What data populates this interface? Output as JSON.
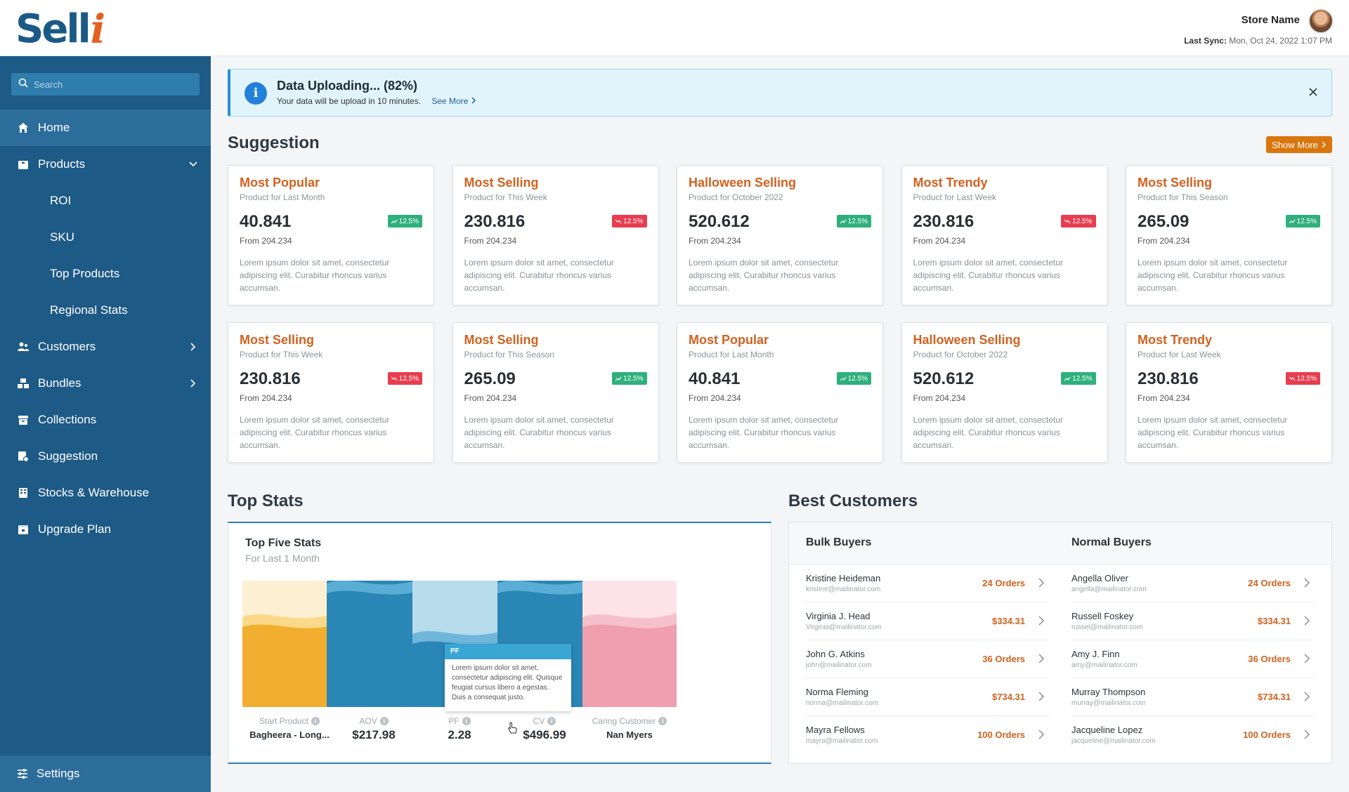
{
  "header": {
    "logo_main": "Sell",
    "logo_accent": "i",
    "store_name": "Store Name",
    "last_sync_label": "Last Sync:",
    "last_sync_value": "Mon, Oct 24, 2022 1:07 PM"
  },
  "sidebar": {
    "search_placeholder": "Search",
    "items": [
      {
        "label": "Home"
      },
      {
        "label": "Products"
      },
      {
        "label": "ROI"
      },
      {
        "label": "SKU"
      },
      {
        "label": "Top Products"
      },
      {
        "label": "Regional Stats"
      },
      {
        "label": "Customers"
      },
      {
        "label": "Bundles"
      },
      {
        "label": "Collections"
      },
      {
        "label": "Suggestion"
      },
      {
        "label": "Stocks & Warehouse"
      },
      {
        "label": "Upgrade Plan"
      }
    ],
    "settings_label": "Settings"
  },
  "banner": {
    "title": "Data Uploading... (82%)",
    "progress_percent": 82,
    "subtitle": "Your data will be upload in 10 minutes.",
    "link": "See More"
  },
  "suggestion": {
    "title": "Suggestion",
    "show_more": "Show More",
    "cards": [
      {
        "title": "Most Popular",
        "subtitle": "Product for Last Month",
        "value": "40.841",
        "trend": "12.5%",
        "direction": "up",
        "from": "From 204.234",
        "desc": "Lorem ipsum dolor sit amet, consectetur adipiscing elit. Curabitur rhoncus varius accumsan."
      },
      {
        "title": "Most Selling",
        "subtitle": "Product for This Week",
        "value": "230.816",
        "trend": "12.5%",
        "direction": "down",
        "from": "From 204.234",
        "desc": "Lorem ipsum dolor sit amet, consectetur adipiscing elit. Curabitur rhoncus varius accumsan."
      },
      {
        "title": "Halloween Selling",
        "subtitle": "Product for October 2022",
        "value": "520.612",
        "trend": "12.5%",
        "direction": "up",
        "from": "From 204.234",
        "desc": "Lorem ipsum dolor sit amet, consectetur adipiscing elit. Curabitur rhoncus varius accumsan."
      },
      {
        "title": "Most Trendy",
        "subtitle": "Product for Last Week",
        "value": "230.816",
        "trend": "12.5%",
        "direction": "down",
        "from": "From 204.234",
        "desc": "Lorem ipsum dolor sit amet, consectetur adipiscing elit. Curabitur rhoncus varius accumsan."
      },
      {
        "title": "Most Selling",
        "subtitle": "Product for This Season",
        "value": "265.09",
        "trend": "12.5%",
        "direction": "up",
        "from": "From 204.234",
        "desc": "Lorem ipsum dolor sit amet, consectetur adipiscing elit. Curabitur rhoncus varius accumsan."
      },
      {
        "title": "Most Selling",
        "subtitle": "Product for This Week",
        "value": "230.816",
        "trend": "12.5%",
        "direction": "down",
        "from": "From 204.234",
        "desc": "Lorem ipsum dolor sit amet, consectetur adipiscing elit. Curabitur rhoncus varius accumsan."
      },
      {
        "title": "Most Selling",
        "subtitle": "Product for This Season",
        "value": "265.09",
        "trend": "12.5%",
        "direction": "up",
        "from": "From 204.234",
        "desc": "Lorem ipsum dolor sit amet, consectetur adipiscing elit. Curabitur rhoncus varius accumsan."
      },
      {
        "title": "Most Popular",
        "subtitle": "Product for Last Month",
        "value": "40.841",
        "trend": "12.5%",
        "direction": "up",
        "from": "From 204.234",
        "desc": "Lorem ipsum dolor sit amet, consectetur adipiscing elit. Curabitur rhoncus varius accumsan."
      },
      {
        "title": "Halloween Selling",
        "subtitle": "Product for October 2022",
        "value": "520.612",
        "trend": "12.5%",
        "direction": "up",
        "from": "From 204.234",
        "desc": "Lorem ipsum dolor sit amet, consectetur adipiscing elit. Curabitur rhoncus varius accumsan."
      },
      {
        "title": "Most Trendy",
        "subtitle": "Product for Last Week",
        "value": "230.816",
        "trend": "12.5%",
        "direction": "down",
        "from": "From 204.234",
        "desc": "Lorem ipsum dolor sit amet, consectetur adipiscing elit. Curabitur rhoncus varius accumsan."
      }
    ]
  },
  "top_stats": {
    "title": "Top Stats",
    "panel_title": "Top Five Stats",
    "panel_subtitle": "For Last 1 Month",
    "stats": [
      {
        "label": "Start Product",
        "value": "Bagheera - Long...",
        "color": "#f2ae2f"
      },
      {
        "label": "AOV",
        "value": "$217.98",
        "color": "#2a86b4"
      },
      {
        "label": "PF",
        "value": "2.28",
        "color": "#2a86b4"
      },
      {
        "label": "CV",
        "value": "$496.99",
        "color": "#2a86b4"
      },
      {
        "label": "Caring Customer",
        "value": "Nan Myers",
        "color": "#ef9fae"
      }
    ],
    "tooltip": {
      "title": "PF",
      "body": "Lorem ipsum dolor sit amet, consectetur adipiscing elit. Quisque feugiat cursus libero a egestas. Duis a consequat justo."
    }
  },
  "best_customers": {
    "title": "Best Customers",
    "bulk_title": "Bulk Buyers",
    "normal_title": "Normal Buyers",
    "bulk": [
      {
        "name": "Kristine Heideman",
        "email": "kristine@mailinator.com",
        "value": "24 Orders"
      },
      {
        "name": "Virginia J. Head",
        "email": "Virginia@mailinator.com",
        "value": "$334.31"
      },
      {
        "name": "John G. Atkins",
        "email": "john@mailinator.com",
        "value": "36 Orders"
      },
      {
        "name": "Norma Fleming",
        "email": "norma@mailinator.com",
        "value": "$734.31"
      },
      {
        "name": "Mayra Fellows",
        "email": "mayra@mailinator.com",
        "value": "100 Orders"
      }
    ],
    "normal": [
      {
        "name": "Angella Oliver",
        "email": "angella@mailinator.com",
        "value": "24 Orders"
      },
      {
        "name": "Russell Foskey",
        "email": "russel@mailinator.com",
        "value": "$334.31"
      },
      {
        "name": "Amy J. Finn",
        "email": "amy@mailinator.com",
        "value": "36 Orders"
      },
      {
        "name": "Murray Thompson",
        "email": "murray@mailinator.com",
        "value": "$734.31"
      },
      {
        "name": "Jacqueline Lopez",
        "email": "jacqueline@mailinator.com",
        "value": "100 Orders"
      }
    ]
  },
  "colors": {
    "brand_blue": "#1e5a86",
    "accent_orange": "#d1611f",
    "trend_up": "#2fb07c",
    "trend_down": "#e83d4f"
  }
}
